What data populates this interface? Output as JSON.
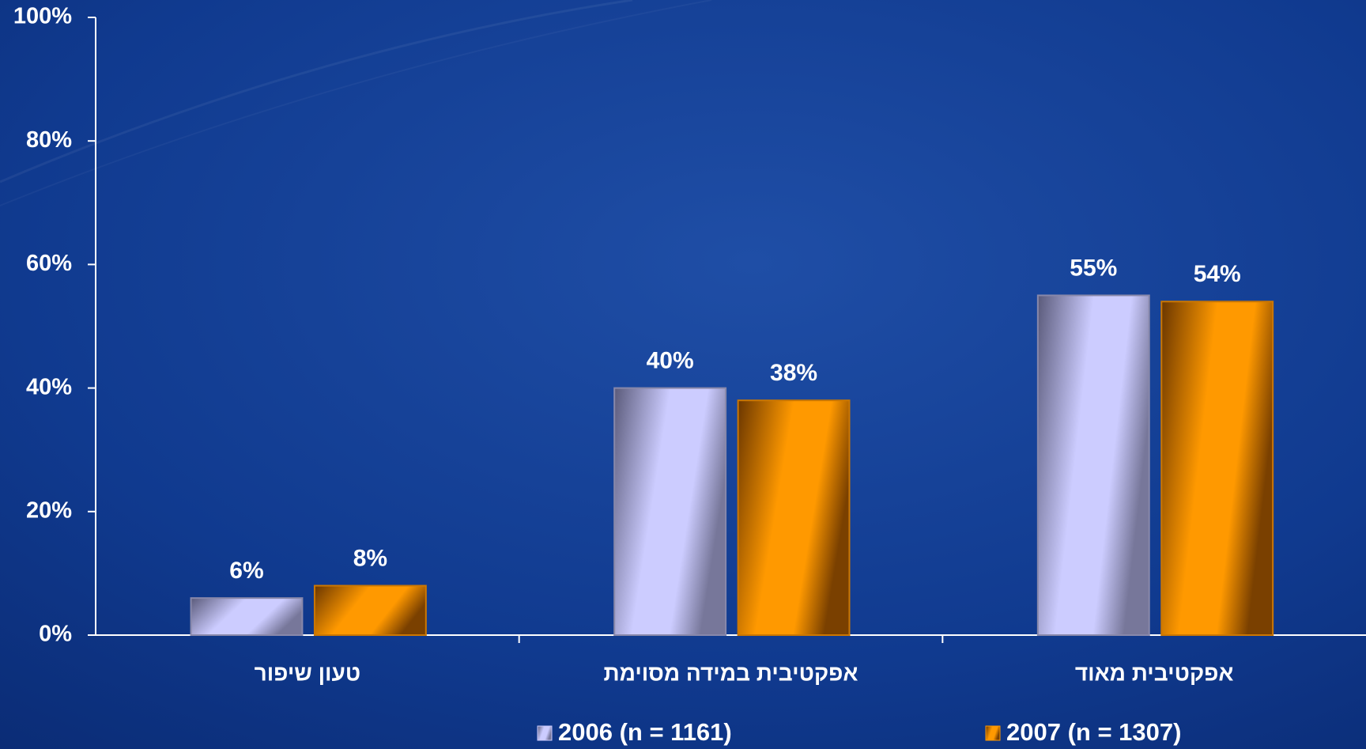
{
  "chart_data": {
    "type": "bar",
    "categories": [
      "טעון שיפור",
      "אפקטיבית במידה מסוימת",
      "אפקטיבית מאוד"
    ],
    "series": [
      {
        "name": "2006 (n = 1161)",
        "color": "#ccccff",
        "values": [
          6,
          40,
          55
        ],
        "value_labels": [
          "6%",
          "40%",
          "55%"
        ]
      },
      {
        "name": "2007 (n = 1307)",
        "color": "#ff9900",
        "values": [
          8,
          38,
          54
        ],
        "value_labels": [
          "8%",
          "38%",
          "54%"
        ]
      }
    ],
    "ylim": [
      0,
      100
    ],
    "yticks": [
      {
        "value": 0,
        "label": "0%"
      },
      {
        "value": 20,
        "label": "20%"
      },
      {
        "value": 40,
        "label": "40%"
      },
      {
        "value": 60,
        "label": "60%"
      },
      {
        "value": 80,
        "label": "80%"
      },
      {
        "value": 100,
        "label": "100%"
      }
    ],
    "grid": false,
    "legend": "bottom"
  }
}
